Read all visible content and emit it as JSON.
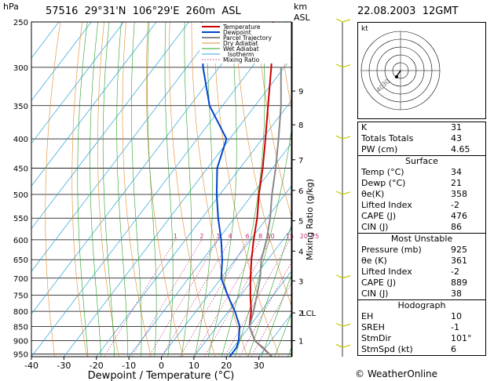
{
  "header": {
    "hpa": "hPa",
    "station": "57516  29°31'N  106°29'E  260m  ASL",
    "km": "km",
    "asl": "ASL",
    "datetime": "22.08.2003  12GMT"
  },
  "chart_data": {
    "type": "line",
    "chart_kind": "skew-T log-p",
    "xlabel": "Dewpoint / Temperature (°C)",
    "ylabel": "hPa",
    "mixing_ratio_label": "Mixing Ratio (g/kg)",
    "xlim": [
      -40,
      40
    ],
    "plim": [
      960,
      250
    ],
    "x_ticks": [
      -40,
      -30,
      -20,
      -10,
      0,
      10,
      20,
      30
    ],
    "p_ticks": [
      250,
      300,
      350,
      400,
      450,
      500,
      550,
      600,
      650,
      700,
      750,
      800,
      850,
      900,
      950
    ],
    "km_ticks": [
      {
        "label": "1",
        "p": 900
      },
      {
        "label": "2",
        "p": 805
      },
      {
        "label": "3",
        "p": 708
      },
      {
        "label": "4",
        "p": 628
      },
      {
        "label": "5",
        "p": 556
      },
      {
        "label": "6",
        "p": 492
      },
      {
        "label": "7",
        "p": 435
      },
      {
        "label": "8",
        "p": 378
      },
      {
        "label": "9",
        "p": 330
      }
    ],
    "lcl_label": "LCL",
    "lcl_p": 805,
    "mixing_ratio_values": [
      "1",
      "2",
      "3",
      "4",
      "6",
      "8",
      "10",
      "15",
      "20",
      "25"
    ],
    "legend": [
      "Temperature",
      "Dewpoint",
      "Parcel Trajectory",
      "Dry Adiabat",
      "Wet Adiabat",
      "Isotherm",
      "Mixing Ratio"
    ],
    "series": [
      {
        "name": "Temperature",
        "color": "#cc0000",
        "points": [
          [
            960,
            34
          ],
          [
            925,
            29
          ],
          [
            900,
            25
          ],
          [
            850,
            20
          ],
          [
            800,
            17
          ],
          [
            750,
            13
          ],
          [
            700,
            9
          ],
          [
            650,
            5
          ],
          [
            600,
            1
          ],
          [
            550,
            -3
          ],
          [
            500,
            -8
          ],
          [
            450,
            -13
          ],
          [
            400,
            -19
          ],
          [
            350,
            -26
          ],
          [
            300,
            -34
          ],
          [
            250,
            -44
          ]
        ]
      },
      {
        "name": "Dewpoint",
        "color": "#0044cc",
        "points": [
          [
            960,
            21
          ],
          [
            925,
            21
          ],
          [
            900,
            20
          ],
          [
            850,
            17
          ],
          [
            800,
            12
          ],
          [
            750,
            6
          ],
          [
            700,
            0
          ],
          [
            650,
            -4
          ],
          [
            600,
            -9
          ],
          [
            550,
            -15
          ],
          [
            500,
            -21
          ],
          [
            450,
            -27
          ],
          [
            400,
            -31
          ],
          [
            350,
            -44
          ],
          [
            300,
            -55
          ],
          [
            250,
            -66
          ]
        ]
      },
      {
        "name": "Parcel Trajectory",
        "color": "#888888",
        "points": [
          [
            960,
            34
          ],
          [
            900,
            25
          ],
          [
            850,
            20
          ],
          [
            805,
            18
          ],
          [
            750,
            15
          ],
          [
            700,
            12
          ],
          [
            650,
            8
          ],
          [
            600,
            5
          ],
          [
            550,
            1
          ],
          [
            500,
            -4
          ],
          [
            450,
            -9
          ],
          [
            400,
            -15
          ],
          [
            350,
            -22
          ],
          [
            300,
            -31
          ]
        ]
      }
    ],
    "hodograph": {
      "label": "kt",
      "ring_labels": [
        "30",
        "40"
      ]
    },
    "wind_barbs": [
      {
        "p": 250
      },
      {
        "p": 300
      },
      {
        "p": 400
      },
      {
        "p": 500
      },
      {
        "p": 700
      },
      {
        "p": 850
      },
      {
        "p": 925
      }
    ]
  },
  "indices": [
    {
      "label": "K",
      "value": "31"
    },
    {
      "label": "Totals Totals",
      "value": "43"
    },
    {
      "label": "PW (cm)",
      "value": "4.65"
    }
  ],
  "surface": {
    "title": "Surface",
    "rows": [
      {
        "label": "Temp (°C)",
        "value": "34"
      },
      {
        "label": "Dewp (°C)",
        "value": "21"
      },
      {
        "label": "θe(K)",
        "value": "358"
      },
      {
        "label": "Lifted Index",
        "value": "-2"
      },
      {
        "label": "CAPE (J)",
        "value": "476"
      },
      {
        "label": "CIN (J)",
        "value": "86"
      }
    ]
  },
  "most_unstable": {
    "title": "Most Unstable",
    "rows": [
      {
        "label": "Pressure (mb)",
        "value": "925"
      },
      {
        "label": "θe (K)",
        "value": "361"
      },
      {
        "label": "Lifted Index",
        "value": "-2"
      },
      {
        "label": "CAPE (J)",
        "value": "889"
      },
      {
        "label": "CIN (J)",
        "value": "38"
      }
    ]
  },
  "hodograph_table": {
    "title": "Hodograph",
    "rows": [
      {
        "label": "EH",
        "value": "10"
      },
      {
        "label": "SREH",
        "value": "-1"
      },
      {
        "label": "StmDir",
        "value": "101°"
      },
      {
        "label": "StmSpd (kt)",
        "value": "6"
      }
    ]
  },
  "credit": "© WeatherOnline",
  "colors": {
    "temperature": "#cc0000",
    "dewpoint": "#0044cc",
    "parcel": "#888888",
    "dry_adiabat": "#e08a2c",
    "wet_adiabat": "#2aa02a",
    "isotherm": "#29a3d6",
    "mixing_ratio": "#c0307a"
  }
}
